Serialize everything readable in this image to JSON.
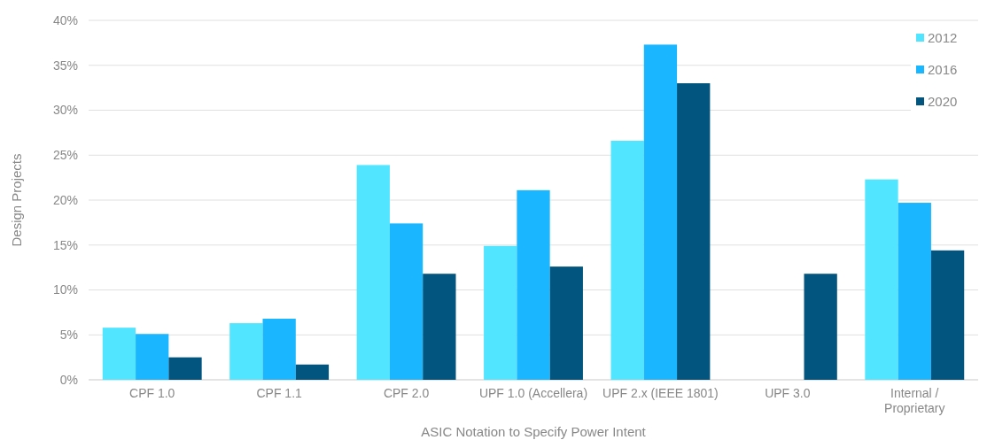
{
  "chart_data": {
    "type": "bar",
    "xlabel": "ASIC Notation to Specify Power Intent",
    "ylabel": "Design Projects",
    "categories": [
      "CPF 1.0",
      "CPF 1.1",
      "CPF 2.0",
      "UPF 1.0 (Accellera)",
      "UPF 2.x (IEEE 1801)",
      "UPF 3.0",
      "Internal / Proprietary"
    ],
    "series": [
      {
        "name": "2012",
        "color": "#52e5ff",
        "values": [
          5.8,
          6.3,
          23.9,
          14.9,
          26.6,
          null,
          22.3
        ]
      },
      {
        "name": "2016",
        "color": "#1ab6ff",
        "values": [
          5.1,
          6.8,
          17.4,
          21.1,
          37.3,
          null,
          19.7
        ]
      },
      {
        "name": "2020",
        "color": "#01557e",
        "values": [
          2.5,
          1.7,
          11.8,
          12.6,
          33.0,
          11.8,
          14.4
        ]
      }
    ],
    "ylim": [
      0,
      40
    ],
    "yticks": [
      {
        "value": 0,
        "label": "0%"
      },
      {
        "value": 5,
        "label": "5%"
      },
      {
        "value": 10,
        "label": "10%"
      },
      {
        "value": 15,
        "label": "15%"
      },
      {
        "value": 20,
        "label": "20%"
      },
      {
        "value": 25,
        "label": "25%"
      },
      {
        "value": 30,
        "label": "30%"
      },
      {
        "value": 35,
        "label": "35%"
      },
      {
        "value": 40,
        "label": "40%"
      }
    ],
    "grid": "y",
    "legend": "top right"
  }
}
